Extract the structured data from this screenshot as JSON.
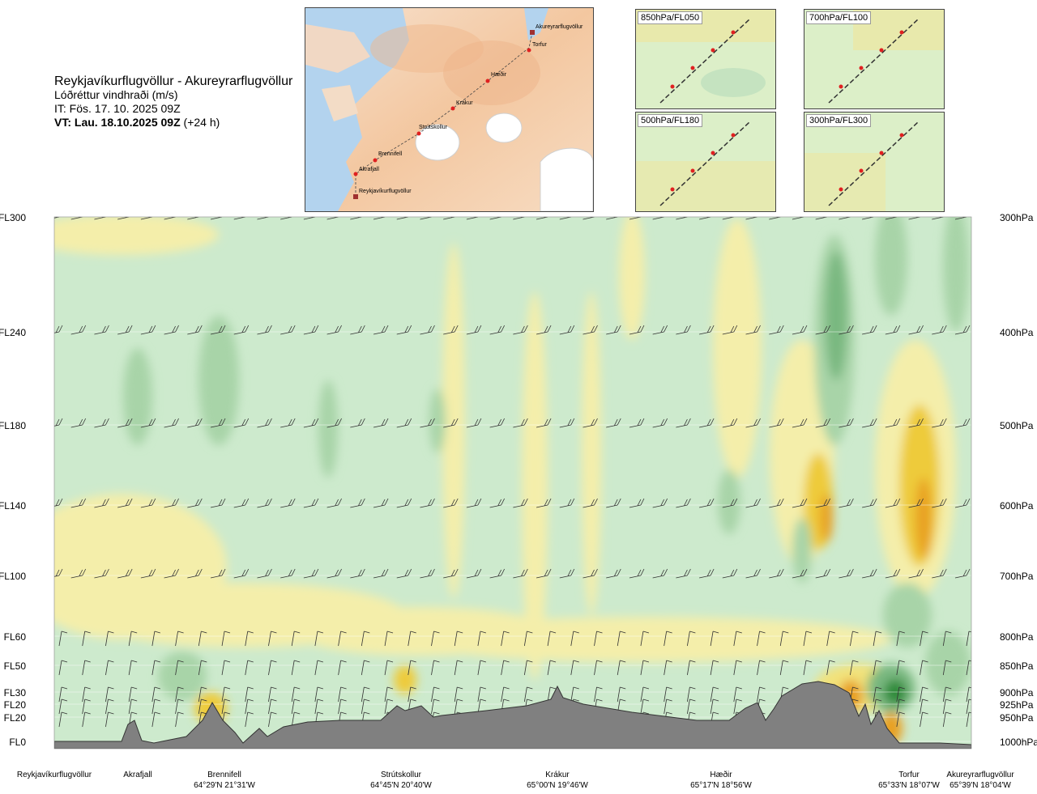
{
  "header": {
    "route": "Reykjavíkurflugvöllur - Akureyrarflugvöllur",
    "variable": "Lóðréttur vindhraði (m/s)",
    "issue_time": "IT: Fös. 17. 10. 2025 09Z",
    "valid_time_bold": "VT: Lau. 18.10.2025 09Z",
    "valid_time_offset": "(+24 h)"
  },
  "route_map": {
    "points": [
      "Akureyrarflugvöllur",
      "Torfur",
      "Hæðir",
      "Krákur",
      "Strútskollur",
      "Brennifell",
      "Akrafjall",
      "Reykjavíkurflugvöllur"
    ]
  },
  "inset_panels": [
    {
      "label": "850hPa/FL050"
    },
    {
      "label": "700hPa/FL100"
    },
    {
      "label": "500hPa/FL180"
    },
    {
      "label": "300hPa/FL300"
    }
  ],
  "chart_data": {
    "type": "heatmap",
    "title": "Reykjavíkurflugvöllur - Akureyrarflugvöllur",
    "field": "Lóðréttur vindhraði (m/s)",
    "left_axis_levels": [
      "FL300",
      "FL240",
      "FL180",
      "FL140",
      "FL100",
      "FL60",
      "FL50",
      "FL30",
      "FL20",
      "FL20",
      "FL0"
    ],
    "right_axis_levels": [
      "300hPa",
      "400hPa",
      "500hPa",
      "600hPa",
      "700hPa",
      "800hPa",
      "850hPa",
      "900hPa",
      "925hPa",
      "950hPa",
      "1000hPa"
    ],
    "pressure_values": [
      300,
      400,
      500,
      600,
      700,
      800,
      850,
      900,
      925,
      950,
      1000
    ],
    "ylim_hpa": [
      1000,
      300
    ],
    "x_waypoints": [
      {
        "name": "Reykjavíkurflugvöllur",
        "coord": "",
        "x": 0.0
      },
      {
        "name": "Akrafjall",
        "coord": "",
        "x": 0.09
      },
      {
        "name": "Brennifell",
        "coord": "64°29'N 21°31'W",
        "x": 0.19
      },
      {
        "name": "Strútskollur",
        "coord": "64°45'N 20°40'W",
        "x": 0.38
      },
      {
        "name": "Krákur",
        "coord": "65°00'N 19°46'W",
        "x": 0.55
      },
      {
        "name": "Hæðir",
        "coord": "65°17'N 18°56'W",
        "x": 0.74
      },
      {
        "name": "Torfur",
        "coord": "65°33'N 18°07'W",
        "x": 0.93
      },
      {
        "name": "Akureyrarflugvöllur",
        "coord": "65°39'N 18°04'W",
        "x": 1.0
      }
    ],
    "colors": {
      "strong_down": "#2e8b3a",
      "moderate_down": "#79b880",
      "weak_down": "#a8d4a8",
      "slight_down": "#cdeacd",
      "neutral": "#f3f8e8",
      "slight_up": "#f4eeaa",
      "weak_up": "#f2e27a",
      "moderate_up": "#eecb3a",
      "strong_up": "#e8a020",
      "terrain": "#808080"
    }
  }
}
